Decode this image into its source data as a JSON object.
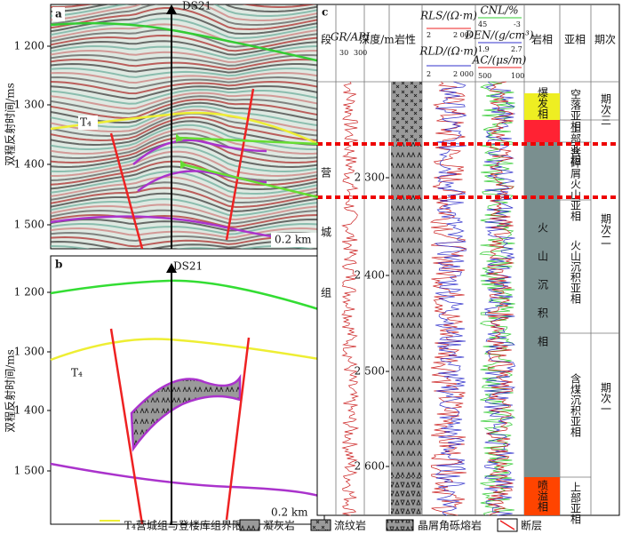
{
  "panel_a": {
    "label": "a",
    "well": "DS21",
    "horizon": "T₄",
    "scale": "0.2 km",
    "y_axis_title": "双程反射时间/ms",
    "yticks": [
      "1 200",
      "1 300",
      "1 400",
      "1 500"
    ]
  },
  "panel_b": {
    "label": "b",
    "well": "DS21",
    "horizon": "T₄",
    "scale": "0.2 km",
    "y_axis_title": "双程反射时间/ms",
    "yticks": [
      "1 200",
      "1 300",
      "1 400",
      "1 500"
    ]
  },
  "panel_c": {
    "label": "c",
    "headers": {
      "segment": "段",
      "gr": "GR/API",
      "gr_range": [
        "30",
        "300"
      ],
      "depth": "深度/m",
      "lithology": "岩性",
      "rls": "RLS/(Ω·m)",
      "rls_range": [
        "2",
        "2 000"
      ],
      "rld": "RLD/(Ω·m)",
      "rld_range": [
        "2",
        "2 000"
      ],
      "cnl": "CNL/%",
      "cnl_range": [
        "45",
        "-3"
      ],
      "den": "DEN/(g/cm³)",
      "den_range": [
        "1.9",
        "2.7"
      ],
      "ac": "AC/(μs/m)",
      "ac_range": [
        "500",
        "100"
      ],
      "facies": "岩相",
      "subfacies": "亚相",
      "period": "期次"
    },
    "formation": [
      "营",
      "城",
      "组"
    ],
    "depth_ticks": [
      "2 300",
      "2 400",
      "2 500",
      "2 600"
    ],
    "facies": [
      "爆发相",
      "火山沉积相",
      "喷溢相"
    ],
    "subfacies": [
      "空落亚相",
      "上部亚相",
      "含碎屑火山亚相",
      "火山沉积亚相",
      "含煤沉积亚相",
      "上部亚相"
    ],
    "periods": [
      "期次三",
      "期次二",
      "期次一"
    ]
  },
  "legend": [
    "T₄营城组与登楼库组界限",
    "凝灰岩",
    "流纹岩",
    "晶屑角砾熔岩",
    "断层"
  ]
}
